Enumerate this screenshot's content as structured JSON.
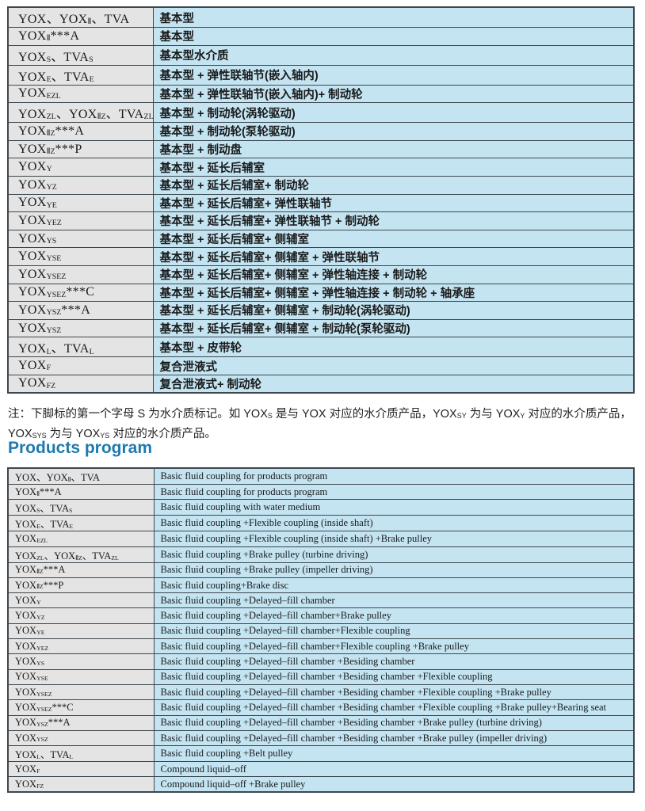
{
  "colors": {
    "model_cell_bg": "#e4e4e4",
    "desc_cell_bg": "#c4e4f2",
    "border": "#3d474e",
    "heading": "#1e7aae"
  },
  "heading": {
    "text": "Products program"
  },
  "note": {
    "text": "注：下脚标的第一个字母 S 为水介质标记。如 YOX~S~ 是与 YOX 对应的水介质产品，YOX~SY~ 为与 YOX~Y~ 对应的水介质产品，YOX~SYS~ 为与 YOX~YS~ 对应的水介质产品。"
  },
  "table_cn": {
    "rows": [
      {
        "model": "YOX、YOX~Ⅱ~、TVA",
        "desc": "基本型"
      },
      {
        "model": "YOX~Ⅱ~***A",
        "desc": "基本型"
      },
      {
        "model": "YOX~S~、TVA~S~",
        "desc": "基本型水介质"
      },
      {
        "model": "YOX~E~、TVA~E~",
        "desc": "基本型 + 弹性联轴节(嵌入轴内)"
      },
      {
        "model": "YOX~EZL~",
        "desc": "基本型 + 弹性联轴节(嵌入轴内)+ 制动轮"
      },
      {
        "model": "YOX~ZL~、YOX~ⅡZ~、TVA~ZL~",
        "desc": "基本型 + 制动轮(涡轮驱动)"
      },
      {
        "model": "YOX~ⅡZ~***A",
        "desc": "基本型 + 制动轮(泵轮驱动)"
      },
      {
        "model": "YOX~ⅡZ~***P",
        "desc": "基本型 + 制动盘"
      },
      {
        "model": "YOX~Y~",
        "desc": "基本型 + 延长后辅室"
      },
      {
        "model": "YOX~YZ~",
        "desc": "基本型 + 延长后辅室+ 制动轮"
      },
      {
        "model": "YOX~YE~",
        "desc": "基本型 + 延长后辅室+ 弹性联轴节"
      },
      {
        "model": "YOX~YEZ~",
        "desc": "基本型 + 延长后辅室+ 弹性联轴节 + 制动轮"
      },
      {
        "model": "YOX~YS~",
        "desc": "基本型 + 延长后辅室+ 侧辅室"
      },
      {
        "model": "YOX~YSE~",
        "desc": "基本型 + 延长后辅室+ 侧辅室 + 弹性联轴节"
      },
      {
        "model": "YOX~YSEZ~",
        "desc": "基本型 + 延长后辅室+ 侧辅室 + 弹性轴连接 + 制动轮"
      },
      {
        "model": "YOX~YSEZ~***C",
        "desc": "基本型 + 延长后辅室+ 侧辅室 + 弹性轴连接 + 制动轮 + 轴承座"
      },
      {
        "model": "YOX~YSZ~***A",
        "desc": "基本型 + 延长后辅室+ 侧辅室 + 制动轮(涡轮驱动)"
      },
      {
        "model": "YOX~YSZ~",
        "desc": "基本型 + 延长后辅室+ 侧辅室 + 制动轮(泵轮驱动)"
      },
      {
        "model": "YOX~L~、TVA~L~",
        "desc": "基本型 + 皮带轮"
      },
      {
        "model": "YOX~F~",
        "desc": "复合泄液式"
      },
      {
        "model": "YOX~FZ~",
        "desc": "复合泄液式+ 制动轮"
      }
    ]
  },
  "table_en": {
    "rows": [
      {
        "model": "YOX、YOX~Ⅱ~、TVA",
        "desc": "Basic fluid coupling for products program"
      },
      {
        "model": "YOX~Ⅱ~***A",
        "desc": "Basic fluid coupling for products program"
      },
      {
        "model": "YOX~S~、TVA~S~",
        "desc": "Basic fluid coupling with water medium"
      },
      {
        "model": "YOX~E~、TVA~E~",
        "desc": "Basic fluid coupling +Flexible coupling (inside shaft)"
      },
      {
        "model": "YOX~EZL~",
        "desc": "Basic fluid coupling +Flexible coupling (inside shaft) +Brake pulley"
      },
      {
        "model": "YOX~ZL~、YOX~ⅡZ~、TVA~ZL~",
        "desc": "Basic fluid coupling +Brake pulley (turbine driving)"
      },
      {
        "model": "YOX~ⅡZ~***A",
        "desc": "Basic fluid coupling +Brake pulley (impeller driving)"
      },
      {
        "model": "YOX~ⅡZ~***P",
        "desc": "Basic fluid coupling+Brake disc"
      },
      {
        "model": "YOX~Y~",
        "desc": "Basic fluid coupling +Delayed–fill chamber"
      },
      {
        "model": "YOX~YZ~",
        "desc": "Basic fluid coupling +Delayed–fill chamber+Brake pulley"
      },
      {
        "model": "YOX~YE~",
        "desc": "Basic fluid coupling +Delayed–fill chamber+Flexible coupling"
      },
      {
        "model": "YOX~YEZ~",
        "desc": "Basic fluid coupling +Delayed–fill chamber+Flexible coupling +Brake pulley"
      },
      {
        "model": "YOX~YS~",
        "desc": "Basic fluid coupling +Delayed–fill chamber +Besiding chamber"
      },
      {
        "model": "YOX~YSE~",
        "desc": "Basic fluid coupling +Delayed–fill chamber +Besiding chamber +Flexible coupling"
      },
      {
        "model": "YOX~YSEZ~",
        "desc": "Basic fluid coupling +Delayed–fill chamber +Besiding chamber +Flexible coupling +Brake pulley"
      },
      {
        "model": "YOX~YSEZ~***C",
        "desc": "Basic fluid coupling +Delayed–fill chamber +Besiding chamber +Flexible coupling +Brake pulley+Bearing seat"
      },
      {
        "model": "YOX~YSZ~***A",
        "desc": "Basic fluid coupling +Delayed–fill chamber +Besiding chamber +Brake pulley (turbine driving)"
      },
      {
        "model": "YOX~YSZ~",
        "desc": "Basic fluid coupling +Delayed–fill chamber +Besiding chamber +Brake pulley (impeller driving)"
      },
      {
        "model": "YOX~L~、TVA~L~",
        "desc": "Basic fluid coupling +Belt pulley"
      },
      {
        "model": "YOX~F~",
        "desc": "Compound liquid–off"
      },
      {
        "model": "YOX~FZ~",
        "desc": "Compound liquid–off +Brake pulley"
      }
    ]
  }
}
